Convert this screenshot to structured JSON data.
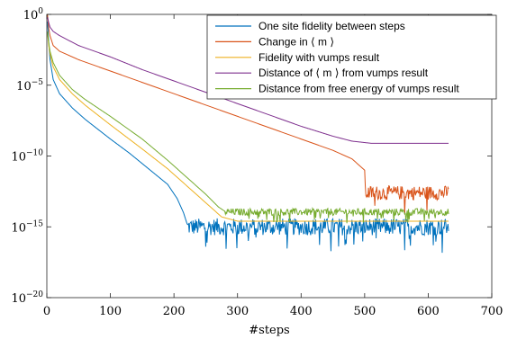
{
  "chart_data": {
    "type": "line",
    "xlabel": "#steps",
    "ylabel": "",
    "xlim": [
      0,
      700
    ],
    "ylim_log10": [
      -20,
      0
    ],
    "yscale": "log",
    "xticks": [
      0,
      100,
      200,
      300,
      400,
      500,
      600,
      700
    ],
    "yticks": [
      {
        "base": "10",
        "exp": "0",
        "value_log10": 0
      },
      {
        "base": "10",
        "exp": "−5",
        "value_log10": -5
      },
      {
        "base": "10",
        "exp": "−10",
        "value_log10": -10
      },
      {
        "base": "10",
        "exp": "−15",
        "value_log10": -15
      },
      {
        "base": "10",
        "exp": "−20",
        "value_log10": -20
      }
    ],
    "legend_position": "top-right",
    "grid": false,
    "series": [
      {
        "name": "One site fidelity between steps",
        "color": "#0072bd",
        "log10_y_points": [
          [
            1,
            -0.5
          ],
          [
            3,
            -2
          ],
          [
            5,
            -3.2
          ],
          [
            10,
            -4.6
          ],
          [
            20,
            -5.6
          ],
          [
            40,
            -6.6
          ],
          [
            60,
            -7.4
          ],
          [
            80,
            -8.1
          ],
          [
            100,
            -8.8
          ],
          [
            130,
            -9.8
          ],
          [
            160,
            -10.9
          ],
          [
            190,
            -12.0
          ],
          [
            205,
            -13.0
          ],
          [
            215,
            -14.0
          ],
          [
            220,
            -14.7
          ]
        ],
        "noise_from": 220,
        "noise_to": 632,
        "noise_level_log10": -15.0,
        "noise_spread": 0.6
      },
      {
        "name": "Change in ⟨ m ⟩",
        "color": "#d95319",
        "log10_y_points": [
          [
            1,
            0
          ],
          [
            3,
            -1.0
          ],
          [
            5,
            -1.5
          ],
          [
            10,
            -2.2
          ],
          [
            20,
            -2.6
          ],
          [
            50,
            -3.2
          ],
          [
            100,
            -4.0
          ],
          [
            150,
            -4.8
          ],
          [
            200,
            -5.6
          ],
          [
            250,
            -6.4
          ],
          [
            300,
            -7.2
          ],
          [
            350,
            -8.0
          ],
          [
            400,
            -8.8
          ],
          [
            450,
            -9.6
          ],
          [
            480,
            -10.2
          ],
          [
            500,
            -11.0
          ]
        ],
        "noise_from": 500,
        "noise_to": 632,
        "noise_level_log10": -12.6,
        "noise_spread": 0.5
      },
      {
        "name": "Fidelity with vumps result",
        "color": "#edb120",
        "log10_y_points": [
          [
            1,
            -1.3
          ],
          [
            3,
            -2.2
          ],
          [
            5,
            -2.8
          ],
          [
            10,
            -3.7
          ],
          [
            20,
            -4.6
          ],
          [
            40,
            -5.6
          ],
          [
            60,
            -6.4
          ],
          [
            80,
            -7.1
          ],
          [
            100,
            -7.8
          ],
          [
            150,
            -9.5
          ],
          [
            190,
            -10.9
          ],
          [
            220,
            -12.1
          ],
          [
            250,
            -13.3
          ],
          [
            275,
            -14.3
          ],
          [
            300,
            -14.6
          ],
          [
            632,
            -14.6
          ]
        ]
      },
      {
        "name": "Distance of ⟨ m ⟩ from vumps result",
        "color": "#7e2f8e",
        "log10_y_points": [
          [
            1,
            -0.2
          ],
          [
            3,
            -0.6
          ],
          [
            5,
            -0.9
          ],
          [
            10,
            -1.2
          ],
          [
            20,
            -1.5
          ],
          [
            50,
            -2.2
          ],
          [
            100,
            -3.0
          ],
          [
            150,
            -3.9
          ],
          [
            200,
            -4.7
          ],
          [
            250,
            -5.5
          ],
          [
            300,
            -6.3
          ],
          [
            350,
            -7.1
          ],
          [
            400,
            -7.9
          ],
          [
            450,
            -8.6
          ],
          [
            480,
            -8.95
          ],
          [
            510,
            -9.1
          ],
          [
            632,
            -9.1
          ]
        ]
      },
      {
        "name": "Distance from free energy of vumps result",
        "color": "#77ac30",
        "log10_y_points": [
          [
            1,
            -1.2
          ],
          [
            3,
            -2.0
          ],
          [
            5,
            -2.6
          ],
          [
            10,
            -3.4
          ],
          [
            20,
            -4.3
          ],
          [
            40,
            -5.3
          ],
          [
            60,
            -6.0
          ],
          [
            80,
            -6.6
          ],
          [
            100,
            -7.2
          ],
          [
            150,
            -8.8
          ],
          [
            190,
            -10.3
          ],
          [
            220,
            -11.5
          ],
          [
            250,
            -12.7
          ],
          [
            270,
            -13.6
          ],
          [
            280,
            -13.9
          ]
        ],
        "noise_from": 280,
        "noise_to": 632,
        "noise_level_log10": -13.95,
        "noise_spread": 0.25
      }
    ]
  }
}
